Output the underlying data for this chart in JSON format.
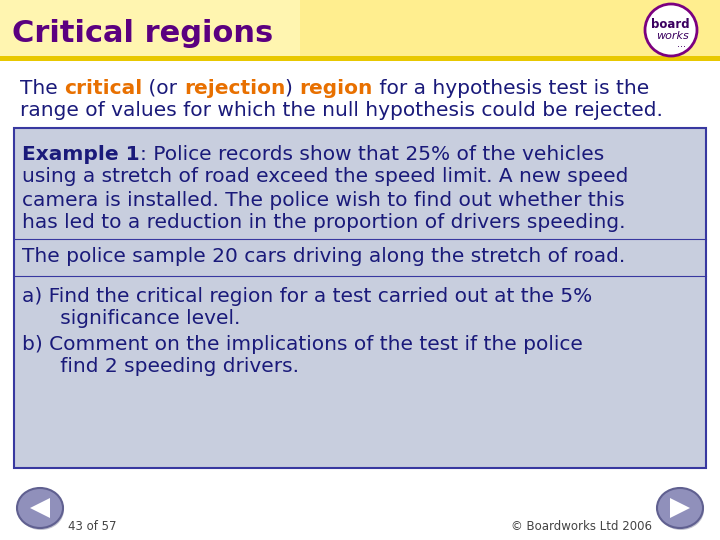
{
  "title": "Critical regions",
  "title_color": "#5B0080",
  "title_bg_gradient_left": "#FFFACD",
  "title_bg_gradient_right": "#FFE87C",
  "title_stripe_color": "#E8C800",
  "bg_color": "#FFFFFF",
  "orange_color": "#E87000",
  "text_color": "#1a1a7a",
  "box_bg_color": "#C8CEDE",
  "box_border_color": "#3838A0",
  "intro_line1_parts": [
    [
      "The ",
      "#1a1a7a",
      false
    ],
    [
      "critical",
      "#E87000",
      true
    ],
    [
      " (or ",
      "#1a1a7a",
      false
    ],
    [
      "rejection",
      "#E87000",
      true
    ],
    [
      ") ",
      "#1a1a7a",
      false
    ],
    [
      "region",
      "#E87000",
      true
    ],
    [
      " for a hypothesis test is the",
      "#1a1a7a",
      false
    ]
  ],
  "intro_line2": "range of values for which the null hypothesis could be rejected.",
  "example_bold": "Example 1",
  "example_rest": ": Police records show that 25% of the vehicles",
  "example_line2": "using a stretch of road exceed the speed limit. A new speed",
  "example_line3": "camera is installed. The police wish to find out whether this",
  "example_line4": "has led to a reduction in the proportion of drivers speeding.",
  "sample_text": "The police sample 20 cars driving along the stretch of road.",
  "part_a1": "a) Find the critical region for a test carried out at the 5%",
  "part_a2": "      significance level.",
  "part_b1": "b) Comment on the implications of the test if the police",
  "part_b2": "      find 2 speeding drivers.",
  "footer_left": "43 of 57",
  "footer_right": "© Boardworks Ltd 2006",
  "logo_text1": "board",
  "logo_text2": "works",
  "logo_text3": "...",
  "logo_border_color": "#7B0080",
  "arrow_fill": "#9090BB",
  "arrow_border": "#606090"
}
